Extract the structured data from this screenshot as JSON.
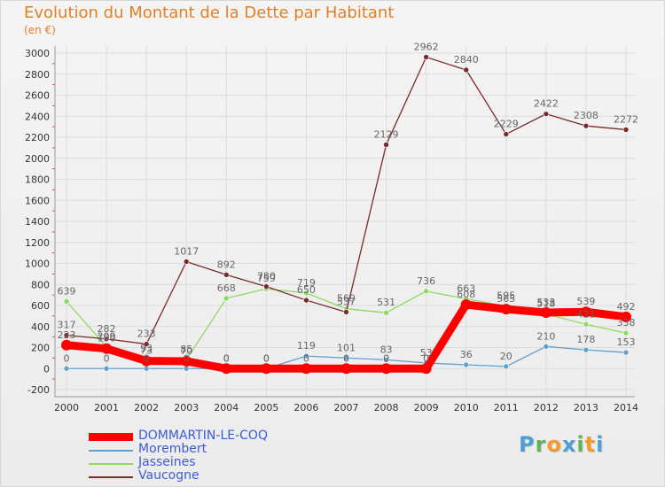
{
  "header": {
    "title": "Evolution du Montant de la Dette par Habitant",
    "subtitle": "(en €)"
  },
  "brand": {
    "text": "Proxiti",
    "letters": [
      "P",
      "r",
      "o",
      "x",
      "i",
      "t",
      "i"
    ],
    "colors": [
      "#4f9fd6",
      "#5fb35a",
      "#f29a2e",
      "#4f9fd6",
      "#5fb35a",
      "#f29a2e",
      "#4f9fd6"
    ]
  },
  "colors": {
    "grid": "#dcdcdc",
    "axis": "#999999",
    "tick_label": "#333333",
    "data_label": "#666666",
    "y_tick_mark": "#e0463c"
  },
  "chart_data": {
    "type": "line",
    "title": "Evolution du Montant de la Dette par Habitant",
    "subtitle": "(en €)",
    "x": [
      "2000",
      "2001",
      "2002",
      "2003",
      "2004",
      "2005",
      "2006",
      "2007",
      "2008",
      "2009",
      "2010",
      "2011",
      "2012",
      "2013",
      "2014"
    ],
    "ylim": [
      -200,
      3000
    ],
    "yticks": [
      "-200",
      "0",
      "200",
      "400",
      "600",
      "800",
      "1000",
      "1200",
      "1400",
      "1600",
      "1800",
      "2000",
      "2200",
      "2400",
      "2600",
      "2800",
      "3000"
    ],
    "grid": true,
    "legend": "bottom-left",
    "series": [
      {
        "name": "DOMMARTIN-LE-COQ",
        "color": "#ff0000",
        "values": [
          223,
          190,
          73,
          70,
          0,
          0,
          0,
          0,
          0,
          0,
          608,
          565,
          533,
          539,
          492
        ]
      },
      {
        "name": "Morembert",
        "color": "#5fa0d0",
        "values": [
          0,
          0,
          0,
          0,
          0,
          0,
          119,
          101,
          83,
          53,
          36,
          20,
          210,
          178,
          153
        ]
      },
      {
        "name": "Jasseines",
        "color": "#8fd85e",
        "values": [
          639,
          209,
          93,
          85,
          668,
          759,
          719,
          569,
          531,
          736,
          663,
          595,
          518,
          421,
          338
        ]
      },
      {
        "name": "Vaucogne",
        "color": "#7a2a2a",
        "values": [
          317,
          282,
          233,
          1017,
          892,
          780,
          650,
          537,
          2129,
          2962,
          2840,
          2229,
          2422,
          2308,
          2272
        ]
      }
    ]
  }
}
